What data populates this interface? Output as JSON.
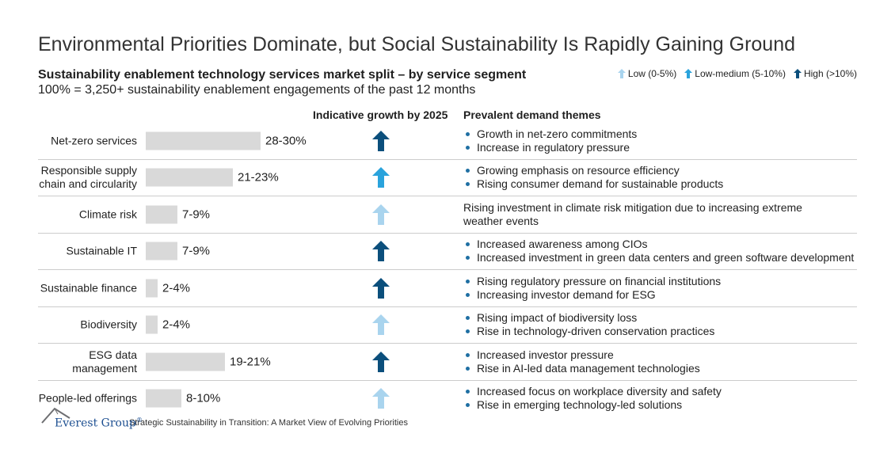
{
  "title": "Environmental Priorities Dominate, but Social Sustainability Is Rapidly Gaining Ground",
  "subtitle": "Sustainability enablement technology services market split – by service segment",
  "base_note": "100% = 3,250+ sustainability enablement engagements of the past 12 months",
  "legend": {
    "low": "Low (0-5%)",
    "low_medium": "Low-medium (5-10%)",
    "high": "High (>10%)"
  },
  "column_headers": {
    "growth": "Indicative growth by 2025",
    "themes": "Prevalent demand themes"
  },
  "colors": {
    "low": "#a9d4ee",
    "low_medium": "#2aa3dc",
    "high": "#0b4f7c",
    "bar": "#d9d9d9",
    "bullet": "#1f6fa3"
  },
  "chart_data": {
    "type": "bar",
    "orientation": "horizontal",
    "title": "Sustainability enablement technology services market split – by service segment",
    "value_unit": "% share (range)",
    "xlim": [
      0,
      100
    ],
    "categories": [
      "Net-zero services",
      "Responsible supply chain and circularity",
      "Climate risk",
      "Sustainable IT",
      "Sustainable finance",
      "Biodiversity",
      "ESG data management",
      "People-led offerings"
    ],
    "ranges": [
      [
        28,
        30
      ],
      [
        21,
        23
      ],
      [
        7,
        9
      ],
      [
        7,
        9
      ],
      [
        2,
        4
      ],
      [
        2,
        4
      ],
      [
        19,
        21
      ],
      [
        8,
        10
      ]
    ],
    "values": [
      29,
      22,
      8,
      8,
      3,
      3,
      20,
      9
    ],
    "value_labels": [
      "28-30%",
      "21-23%",
      "7-9%",
      "7-9%",
      "2-4%",
      "2-4%",
      "19-21%",
      "8-10%"
    ]
  },
  "rows": [
    {
      "label_lines": [
        "Net-zero services"
      ],
      "growth": "high",
      "themes": [
        "Growth in net-zero commitments",
        "Increase in regulatory pressure"
      ]
    },
    {
      "label_lines": [
        "Responsible supply",
        "chain and circularity"
      ],
      "growth": "low_medium",
      "themes": [
        "Growing emphasis on resource efficiency",
        "Rising consumer demand for sustainable products"
      ]
    },
    {
      "label_lines": [
        "Climate risk"
      ],
      "growth": "low",
      "theme_text": "Rising investment in climate risk mitigation due to increasing extreme weather events"
    },
    {
      "label_lines": [
        "Sustainable IT"
      ],
      "growth": "high",
      "themes": [
        "Increased awareness among CIOs",
        "Increased investment in green data centers and green software development"
      ]
    },
    {
      "label_lines": [
        "Sustainable finance"
      ],
      "growth": "high",
      "themes": [
        "Rising regulatory pressure on financial institutions",
        "Increasing investor demand for ESG"
      ]
    },
    {
      "label_lines": [
        "Biodiversity"
      ],
      "growth": "low",
      "themes": [
        "Rising impact of biodiversity loss",
        "Rise in technology-driven conservation practices"
      ]
    },
    {
      "label_lines": [
        "ESG data",
        "management"
      ],
      "growth": "high",
      "themes": [
        "Increased investor pressure",
        "Rise in AI-led data management technologies"
      ]
    },
    {
      "label_lines": [
        "People-led offerings"
      ],
      "growth": "low",
      "themes": [
        "Increased focus on workplace diversity and safety",
        "Rise in emerging technology-led solutions"
      ]
    }
  ],
  "footer": {
    "brand": "Everest Group",
    "reg_mark": "®",
    "source": "Strategic Sustainability in Transition: A Market View of Evolving Priorities"
  }
}
